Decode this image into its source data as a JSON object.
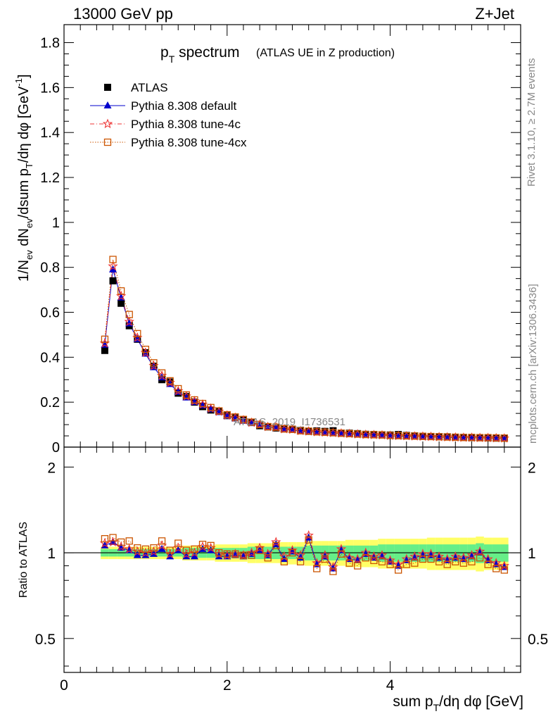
{
  "header": {
    "energy_label": "13000 GeV pp",
    "process_label": "Z+Jet"
  },
  "side_labels": {
    "rivet": "Rivet 3.1.10, ≥ 2.7M events",
    "mcplots": "mcplots.cern.ch [arXiv:1306.3436]"
  },
  "watermark": "ATLAS_2019_I1736531",
  "legend_position": "top-left",
  "chart_data": [
    {
      "type": "scatter",
      "title": "p_T spectrum",
      "subtitle": "(ATLAS UE in Z production)",
      "ylabel": "1/N_ev dN_ev/dsum p_T/dη dφ [GeV^-1]",
      "xlim": [
        0,
        5.6
      ],
      "ylim": [
        0,
        1.88
      ],
      "y_ticks": [
        "0",
        "0.2",
        "0.4",
        "0.6",
        "0.8",
        "1",
        "1.2",
        "1.4",
        "1.6",
        "1.8"
      ],
      "x": [
        0.5,
        0.6,
        0.7,
        0.8,
        0.9,
        1.0,
        1.1,
        1.2,
        1.3,
        1.4,
        1.5,
        1.6,
        1.7,
        1.8,
        1.9,
        2.0,
        2.1,
        2.2,
        2.3,
        2.4,
        2.5,
        2.6,
        2.7,
        2.8,
        2.9,
        3.0,
        3.1,
        3.2,
        3.3,
        3.4,
        3.5,
        3.6,
        3.7,
        3.8,
        3.9,
        4.0,
        4.1,
        4.2,
        4.3,
        4.4,
        4.5,
        4.6,
        4.7,
        4.8,
        4.9,
        5.0,
        5.1,
        5.2,
        5.3,
        5.4
      ],
      "series": [
        {
          "name": "ATLAS",
          "color": "#000000",
          "marker": "filled-square",
          "values": [
            0.43,
            0.74,
            0.64,
            0.54,
            0.48,
            0.42,
            0.36,
            0.3,
            0.29,
            0.24,
            0.225,
            0.2,
            0.18,
            0.165,
            0.16,
            0.14,
            0.13,
            0.12,
            0.11,
            0.095,
            0.09,
            0.085,
            0.082,
            0.08,
            0.075,
            0.07,
            0.072,
            0.07,
            0.073,
            0.062,
            0.062,
            0.06,
            0.057,
            0.056,
            0.055,
            0.054,
            0.056,
            0.052,
            0.05,
            0.048,
            0.047,
            0.046,
            0.046,
            0.044,
            0.043,
            0.042,
            0.042,
            0.041,
            0.04,
            0.04
          ]
        },
        {
          "name": "Pythia 8.308 default",
          "color": "#0000cc",
          "marker": "triangle",
          "values": [
            0.455,
            0.79,
            0.665,
            0.55,
            0.48,
            0.415,
            0.355,
            0.31,
            0.28,
            0.245,
            0.22,
            0.2,
            0.185,
            0.168,
            0.155,
            0.138,
            0.128,
            0.117,
            0.106,
            0.098,
            0.088,
            0.086,
            0.078,
            0.076,
            0.07,
            0.068,
            0.066,
            0.064,
            0.062,
            0.06,
            0.058,
            0.056,
            0.054,
            0.053,
            0.052,
            0.05,
            0.049,
            0.048,
            0.047,
            0.046,
            0.045,
            0.044,
            0.043,
            0.042,
            0.042,
            0.041,
            0.041,
            0.04,
            0.039,
            0.039
          ]
        },
        {
          "name": "Pythia 8.308 tune-4c",
          "color": "#ee3333",
          "marker": "star",
          "values": [
            0.462,
            0.805,
            0.672,
            0.558,
            0.487,
            0.42,
            0.362,
            0.318,
            0.287,
            0.25,
            0.226,
            0.205,
            0.19,
            0.172,
            0.158,
            0.141,
            0.131,
            0.12,
            0.109,
            0.1,
            0.09,
            0.088,
            0.08,
            0.078,
            0.072,
            0.07,
            0.067,
            0.065,
            0.063,
            0.061,
            0.059,
            0.057,
            0.055,
            0.054,
            0.053,
            0.051,
            0.05,
            0.049,
            0.048,
            0.047,
            0.046,
            0.045,
            0.044,
            0.043,
            0.042,
            0.042,
            0.041,
            0.041,
            0.04,
            0.039
          ]
        },
        {
          "name": "Pythia 8.308 tune-4cx",
          "color": "#cc5500",
          "marker": "open-square",
          "values": [
            0.48,
            0.835,
            0.695,
            0.59,
            0.505,
            0.435,
            0.375,
            0.33,
            0.295,
            0.26,
            0.232,
            0.21,
            0.194,
            0.176,
            0.161,
            0.144,
            0.134,
            0.123,
            0.111,
            0.101,
            0.091,
            0.089,
            0.081,
            0.079,
            0.073,
            0.071,
            0.068,
            0.066,
            0.064,
            0.062,
            0.06,
            0.058,
            0.056,
            0.055,
            0.054,
            0.052,
            0.051,
            0.05,
            0.049,
            0.048,
            0.047,
            0.046,
            0.045,
            0.044,
            0.043,
            0.043,
            0.042,
            0.042,
            0.041,
            0.04
          ]
        }
      ]
    },
    {
      "type": "scatter",
      "ylabel": "Ratio to ATLAS",
      "xlabel": "sum p_T/dη dφ [GeV]",
      "xlim": [
        0,
        5.6
      ],
      "ylim": [
        0.38,
        2.35
      ],
      "log_y": true,
      "x_ticks": [
        "0",
        "2",
        "4"
      ],
      "y_ticks": [
        "0.5",
        "1",
        "2"
      ],
      "x": [
        0.5,
        0.6,
        0.7,
        0.8,
        0.9,
        1.0,
        1.1,
        1.2,
        1.3,
        1.4,
        1.5,
        1.6,
        1.7,
        1.8,
        1.9,
        2.0,
        2.1,
        2.2,
        2.3,
        2.4,
        2.5,
        2.6,
        2.7,
        2.8,
        2.9,
        3.0,
        3.1,
        3.2,
        3.3,
        3.4,
        3.5,
        3.6,
        3.7,
        3.8,
        3.9,
        4.0,
        4.1,
        4.2,
        4.3,
        4.4,
        4.5,
        4.6,
        4.7,
        4.8,
        4.9,
        5.0,
        5.1,
        5.2,
        5.3,
        5.4
      ],
      "bands": {
        "inner_color": "#66ee88",
        "outer_color": "#ffff66",
        "inner_halfwidth": [
          0.03,
          0.03,
          0.03,
          0.03,
          0.03,
          0.03,
          0.03,
          0.03,
          0.03,
          0.03,
          0.04,
          0.04,
          0.04,
          0.04,
          0.04,
          0.04,
          0.04,
          0.04,
          0.05,
          0.05,
          0.05,
          0.05,
          0.05,
          0.05,
          0.05,
          0.06,
          0.06,
          0.06,
          0.06,
          0.06,
          0.06,
          0.06,
          0.06,
          0.06,
          0.07,
          0.07,
          0.07,
          0.07,
          0.07,
          0.07,
          0.07,
          0.07,
          0.07,
          0.07,
          0.07,
          0.07,
          0.08,
          0.07,
          0.07,
          0.07
        ],
        "outer_halfwidth": [
          0.05,
          0.05,
          0.05,
          0.05,
          0.05,
          0.05,
          0.05,
          0.05,
          0.05,
          0.05,
          0.06,
          0.06,
          0.06,
          0.06,
          0.07,
          0.07,
          0.07,
          0.07,
          0.08,
          0.08,
          0.08,
          0.08,
          0.09,
          0.09,
          0.09,
          0.1,
          0.1,
          0.1,
          0.1,
          0.1,
          0.11,
          0.11,
          0.11,
          0.11,
          0.12,
          0.12,
          0.12,
          0.12,
          0.12,
          0.12,
          0.13,
          0.13,
          0.13,
          0.13,
          0.13,
          0.13,
          0.14,
          0.13,
          0.13,
          0.13
        ]
      },
      "series": [
        {
          "name": "Pythia 8.308 default",
          "color": "#0000cc",
          "marker": "triangle",
          "values": [
            1.06,
            1.09,
            1.04,
            1.02,
            0.98,
            0.98,
            0.99,
            1.03,
            0.97,
            1.02,
            0.97,
            0.97,
            1.03,
            1.02,
            0.97,
            0.97,
            0.98,
            0.97,
            0.99,
            1.02,
            0.98,
            1.07,
            0.95,
            1.01,
            0.96,
            1.13,
            0.91,
            0.97,
            0.88,
            1.02,
            0.95,
            0.94,
            0.99,
            0.96,
            0.97,
            0.93,
            0.9,
            0.94,
            0.96,
            0.98,
            0.98,
            0.96,
            0.94,
            0.96,
            0.95,
            0.97,
            1.0,
            0.94,
            0.91,
            0.89
          ]
        },
        {
          "name": "Pythia 8.308 tune-4c",
          "color": "#ee3333",
          "marker": "star",
          "values": [
            1.08,
            1.09,
            1.05,
            1.03,
            1.01,
            1.0,
            1.01,
            1.06,
            0.99,
            1.04,
            0.99,
            1.0,
            1.05,
            1.04,
            0.99,
            0.98,
            0.99,
            0.98,
            1.0,
            1.04,
            0.99,
            1.09,
            0.97,
            1.02,
            0.98,
            1.15,
            0.92,
            0.98,
            0.89,
            1.03,
            0.96,
            0.95,
            1.0,
            0.97,
            0.98,
            0.94,
            0.91,
            0.95,
            0.97,
            0.99,
            0.99,
            0.97,
            0.95,
            0.97,
            0.96,
            0.98,
            1.01,
            0.95,
            0.92,
            0.9
          ]
        },
        {
          "name": "Pythia 8.308 tune-4cx",
          "color": "#cc5500",
          "marker": "open-square",
          "values": [
            1.12,
            1.13,
            1.09,
            1.1,
            1.04,
            1.03,
            1.04,
            1.1,
            1.02,
            1.08,
            1.02,
            1.03,
            1.07,
            1.06,
            1.0,
            0.99,
            0.99,
            0.98,
            0.98,
            1.02,
            0.96,
            1.06,
            0.93,
            1.0,
            0.93,
            1.11,
            0.88,
            0.95,
            0.86,
            0.99,
            0.92,
            0.9,
            0.96,
            0.94,
            0.93,
            0.91,
            0.87,
            0.91,
            0.92,
            0.95,
            0.95,
            0.93,
            0.91,
            0.93,
            0.92,
            0.93,
            0.96,
            0.91,
            0.88,
            0.87
          ]
        }
      ]
    }
  ]
}
